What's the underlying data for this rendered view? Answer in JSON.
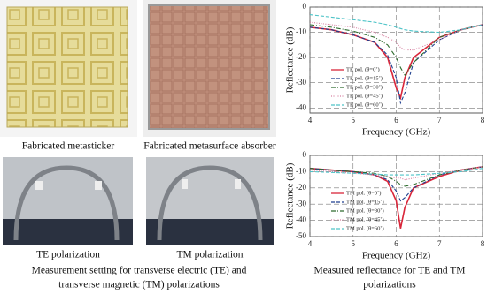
{
  "captions": {
    "photo_1": "Fabricated metasticker",
    "photo_2": "Fabricated metasurface absorber",
    "photo_3": "TE polarization",
    "photo_4": "TM polarization",
    "setup": [
      "Measurement setting for transverse electric (TE) and",
      "transverse magnetic (TM) polarizations"
    ],
    "charts": [
      "Measured reflectance for TE and TM",
      "polarizations"
    ]
  },
  "chart_data": [
    {
      "type": "line",
      "xlabel": "Frequency (GHz)",
      "ylabel": "Reflectance (dB)",
      "x": [
        4,
        4.5,
        5,
        5.5,
        5.8,
        6,
        6.1,
        6.2,
        6.4,
        7,
        7.5,
        8
      ],
      "xlim": [
        4,
        8
      ],
      "xticks": [
        4,
        5,
        6,
        7,
        8
      ],
      "ylim": [
        -42,
        0
      ],
      "yticks": [
        0,
        -10,
        -20,
        -30,
        -40
      ],
      "grid": true,
      "legend": "lower left",
      "series": [
        {
          "name": "TE pol. (θ=0˚)",
          "color": "#d9263a",
          "linestyle": "solid",
          "values": [
            -8,
            -9,
            -11,
            -14,
            -20,
            -32,
            -36,
            -28,
            -20,
            -12,
            -9,
            -7
          ]
        },
        {
          "name": "TE pol. (θ=15˚)",
          "color": "#1f3f8f",
          "linestyle": "dashed",
          "values": [
            -8,
            -9,
            -11,
            -14,
            -19,
            -28,
            -38,
            -34,
            -22,
            -13,
            -9,
            -7
          ]
        },
        {
          "name": "TE pol. (θ=30˚)",
          "color": "#2e6b2e",
          "linestyle": "dashdot",
          "values": [
            -7,
            -8,
            -9.5,
            -12,
            -15,
            -20,
            -24,
            -27,
            -22,
            -12,
            -9,
            -7
          ]
        },
        {
          "name": "TE pol. (θ=45˚)",
          "color": "#d67fa0",
          "linestyle": "dotted",
          "values": [
            -6,
            -7,
            -8,
            -10,
            -12,
            -14,
            -16,
            -17,
            -17,
            -13,
            -9,
            -7
          ]
        },
        {
          "name": "TE pol. (θ=60˚)",
          "color": "#4fc4c8",
          "linestyle": "dashed",
          "values": [
            -3,
            -4,
            -5,
            -6,
            -7,
            -8,
            -8.5,
            -9,
            -9.5,
            -10,
            -9,
            -7
          ]
        }
      ]
    },
    {
      "type": "line",
      "xlabel": "Frequency (GHz)",
      "ylabel": "Reflectance (dB)",
      "x": [
        4,
        4.5,
        5,
        5.5,
        5.8,
        6,
        6.1,
        6.2,
        6.4,
        7,
        7.5,
        8
      ],
      "xlim": [
        4,
        8
      ],
      "xticks": [
        4,
        5,
        6,
        7,
        8
      ],
      "ylim": [
        -50,
        0
      ],
      "yticks": [
        0,
        -10,
        -20,
        -30,
        -40,
        -50
      ],
      "grid": true,
      "legend": "lower left",
      "series": [
        {
          "name": "TM pol. (θ=0˚)",
          "color": "#d9263a",
          "linestyle": "solid",
          "values": [
            -8,
            -9,
            -10,
            -12,
            -16,
            -28,
            -45,
            -32,
            -20,
            -13,
            -9,
            -7
          ]
        },
        {
          "name": "TM pol. (θ=15˚)",
          "color": "#1f3f8f",
          "linestyle": "dashed",
          "values": [
            -8,
            -9,
            -10,
            -12,
            -15,
            -22,
            -28,
            -26,
            -20,
            -12,
            -9,
            -7
          ]
        },
        {
          "name": "TM pol. (θ=30˚)",
          "color": "#2e6b2e",
          "linestyle": "dashdot",
          "values": [
            -8,
            -9,
            -10,
            -11,
            -13,
            -16,
            -18,
            -19,
            -18,
            -12,
            -9,
            -7
          ]
        },
        {
          "name": "TM pol. (θ=45˚)",
          "color": "#d67fa0",
          "linestyle": "dotted",
          "values": [
            -9,
            -10,
            -11,
            -12,
            -13,
            -14,
            -14,
            -15,
            -14,
            -11,
            -9,
            -7
          ]
        },
        {
          "name": "TM pol. (θ=60˚)",
          "color": "#4fc4c8",
          "linestyle": "dashed",
          "values": [
            -10,
            -10.5,
            -11,
            -11.5,
            -12,
            -12,
            -12,
            -12,
            -12,
            -11,
            -10,
            -8
          ]
        }
      ]
    }
  ]
}
